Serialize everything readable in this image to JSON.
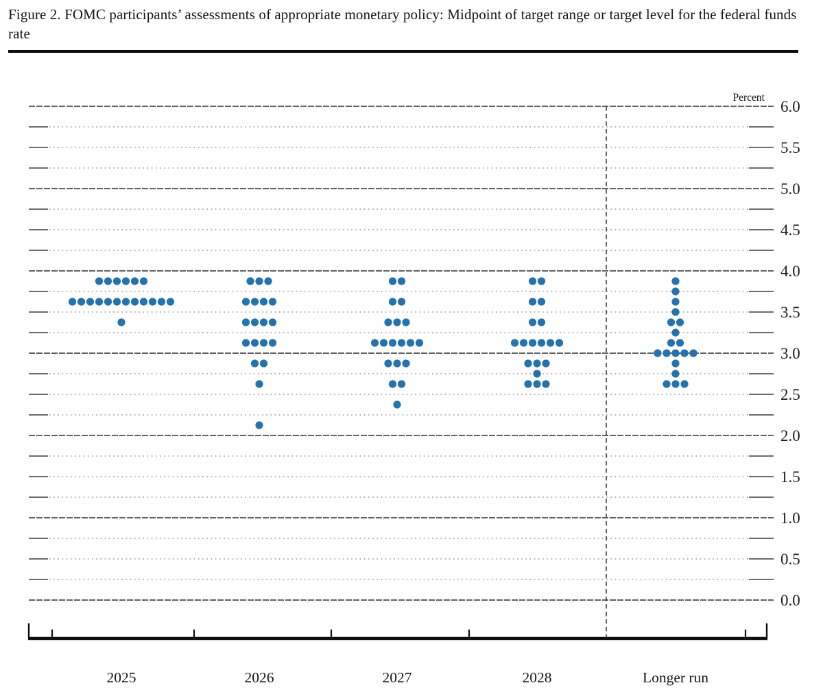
{
  "page": {
    "title": "Figure 2. FOMC participants’ assessments of appropriate monetary policy: Midpoint of target range or target level for the federal funds rate"
  },
  "chart_data": {
    "type": "scatter",
    "subtype": "fomc-dot-plot",
    "title": "Figure 2. FOMC participants’ assessments of appropriate monetary policy: Midpoint of target range or target level for the federal funds rate",
    "unit_label": "Percent",
    "ylim": [
      0.0,
      6.0
    ],
    "y_minor_step": 0.25,
    "y_label_step": 0.5,
    "y_tick_labels": [
      "6.0",
      "5.5",
      "5.0",
      "4.5",
      "4.0",
      "3.5",
      "3.0",
      "2.5",
      "2.0",
      "1.5",
      "1.0",
      "0.5",
      "0.0"
    ],
    "grid": "solid lines at integers, dotted lines at quarter points, no legend",
    "legend_position": "none",
    "separator": "vertical dashed line between 2028 and Longer run",
    "dot_color": "#2572ac",
    "categories": [
      "2025",
      "2026",
      "2027",
      "2028",
      "Longer run"
    ],
    "series": [
      {
        "category": "2025",
        "dots": [
          {
            "rate": 3.875,
            "count": 6
          },
          {
            "rate": 3.625,
            "count": 12
          },
          {
            "rate": 3.375,
            "count": 1
          }
        ]
      },
      {
        "category": "2026",
        "dots": [
          {
            "rate": 3.875,
            "count": 3
          },
          {
            "rate": 3.625,
            "count": 4
          },
          {
            "rate": 3.375,
            "count": 4
          },
          {
            "rate": 3.125,
            "count": 4
          },
          {
            "rate": 2.875,
            "count": 2
          },
          {
            "rate": 2.625,
            "count": 1
          },
          {
            "rate": 2.125,
            "count": 1
          }
        ]
      },
      {
        "category": "2027",
        "dots": [
          {
            "rate": 3.875,
            "count": 2
          },
          {
            "rate": 3.625,
            "count": 2
          },
          {
            "rate": 3.375,
            "count": 3
          },
          {
            "rate": 3.125,
            "count": 6
          },
          {
            "rate": 2.875,
            "count": 3
          },
          {
            "rate": 2.625,
            "count": 2
          },
          {
            "rate": 2.375,
            "count": 1
          }
        ]
      },
      {
        "category": "2028",
        "dots": [
          {
            "rate": 3.875,
            "count": 2
          },
          {
            "rate": 3.625,
            "count": 2
          },
          {
            "rate": 3.375,
            "count": 2
          },
          {
            "rate": 3.125,
            "count": 6
          },
          {
            "rate": 2.875,
            "count": 3
          },
          {
            "rate": 2.75,
            "count": 1
          },
          {
            "rate": 2.625,
            "count": 3
          }
        ]
      },
      {
        "category": "Longer run",
        "dots": [
          {
            "rate": 3.875,
            "count": 1
          },
          {
            "rate": 3.75,
            "count": 1
          },
          {
            "rate": 3.625,
            "count": 1
          },
          {
            "rate": 3.5,
            "count": 1
          },
          {
            "rate": 3.375,
            "count": 2
          },
          {
            "rate": 3.25,
            "count": 1
          },
          {
            "rate": 3.125,
            "count": 2
          },
          {
            "rate": 3.0,
            "count": 5
          },
          {
            "rate": 2.875,
            "count": 1
          },
          {
            "rate": 2.75,
            "count": 1
          },
          {
            "rate": 2.625,
            "count": 3
          }
        ]
      }
    ]
  }
}
